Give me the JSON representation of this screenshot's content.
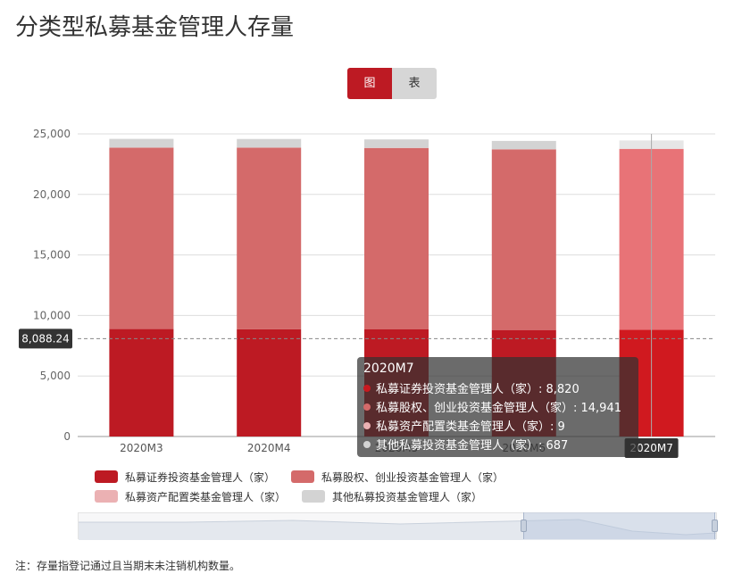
{
  "page": {
    "title": "分类型私募基金管理人存量",
    "note": "注：存量指登记通过且当期末未注销机构数量。"
  },
  "toggle": {
    "chart_label": "图",
    "table_label": "表"
  },
  "colors": {
    "series": [
      "#bd1a23",
      "#d46a6a",
      "#ebb1b3",
      "#d3d3d3"
    ],
    "series_highlight": [
      "#d0191f",
      "#e87377",
      "#f1c3c4",
      "#e6e6e6"
    ],
    "toggle_active": "#bd1a23"
  },
  "pointer": {
    "value_label": "8,088.24",
    "value": 8088.24
  },
  "tooltip": {
    "title": "2020M7",
    "rows": [
      {
        "text": "私募证券投资基金管理人（家）: 8,820"
      },
      {
        "text": "私募股权、创业投资基金管理人（家）: 14,941"
      },
      {
        "text": "私募资产配置类基金管理人（家）: 9"
      },
      {
        "text": "其他私募投资基金管理人（家）: 687"
      }
    ]
  },
  "chart_data": {
    "type": "bar",
    "stacked": true,
    "categories": [
      "2020M3",
      "2020M4",
      "2020M5",
      "2020M6",
      "2020M7"
    ],
    "series": [
      {
        "name": "私募证券投资基金管理人（家）",
        "values": [
          8880,
          8870,
          8850,
          8800,
          8820
        ]
      },
      {
        "name": "私募股权、创业投资基金管理人（家）",
        "values": [
          14980,
          14990,
          14985,
          14920,
          14941
        ]
      },
      {
        "name": "私募资产配置类基金管理人（家）",
        "values": [
          9,
          9,
          9,
          9,
          9
        ]
      },
      {
        "name": "其他私募投资基金管理人（家）",
        "values": [
          720,
          710,
          700,
          690,
          687
        ]
      }
    ],
    "yticks": [
      "0",
      "5,000",
      "10,000",
      "15,000",
      "20,000",
      "25,000"
    ],
    "ylim": [
      0,
      25000
    ],
    "highlighted_category": "2020M7",
    "grid": true,
    "legend_position": "bottom"
  }
}
